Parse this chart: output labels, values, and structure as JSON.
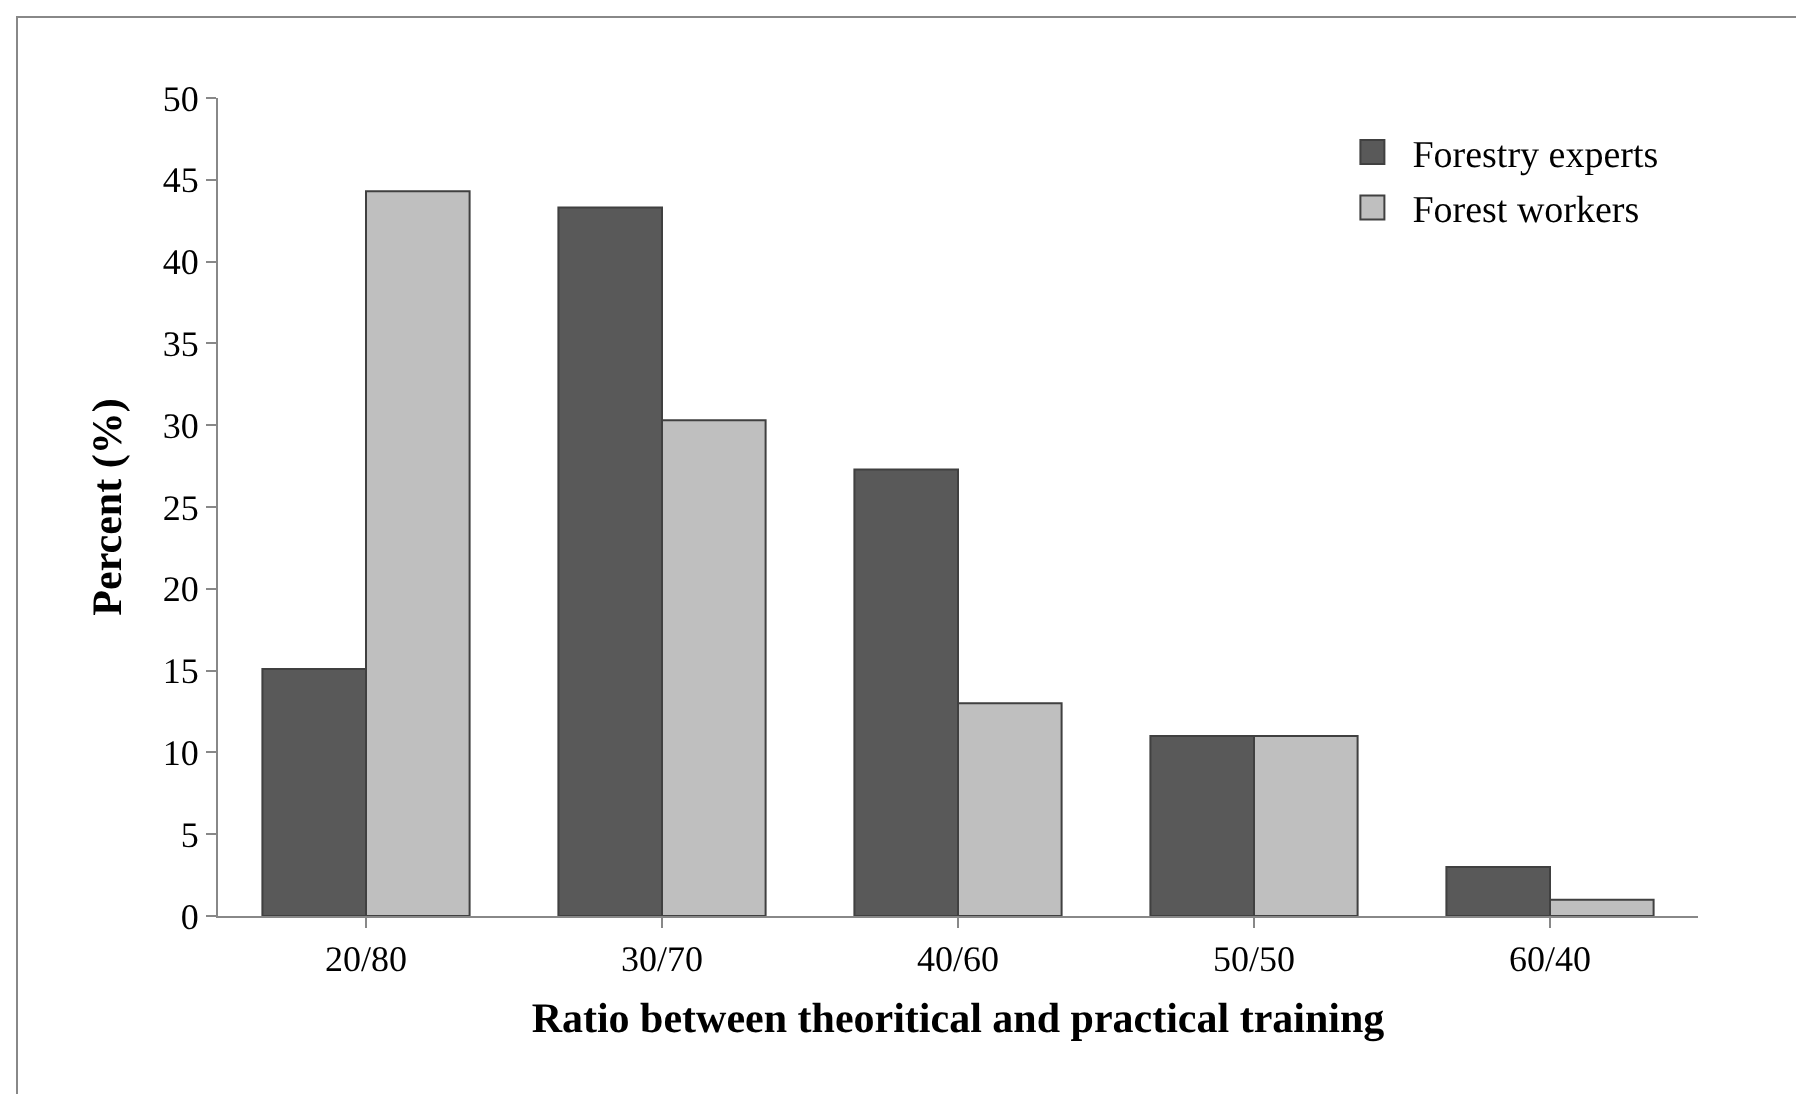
{
  "chart_data": {
    "type": "bar",
    "xlabel": "Ratio between theoritical and practical training",
    "ylabel": "Percent (%)",
    "categories": [
      "20/80",
      "30/70",
      "40/60",
      "50/50",
      "60/40"
    ],
    "series": [
      {
        "name": "Forestry experts",
        "color": "#595959",
        "values": [
          15.1,
          43.3,
          27.3,
          11,
          3
        ]
      },
      {
        "name": "Forest workers",
        "color": "#bfbfbf",
        "values": [
          44.3,
          30.3,
          13,
          11,
          1
        ]
      }
    ],
    "ylim": [
      0,
      50
    ],
    "yticks": [
      0,
      5,
      10,
      15,
      20,
      25,
      30,
      35,
      40,
      45,
      50
    ],
    "grid": false,
    "legend": "top right"
  }
}
